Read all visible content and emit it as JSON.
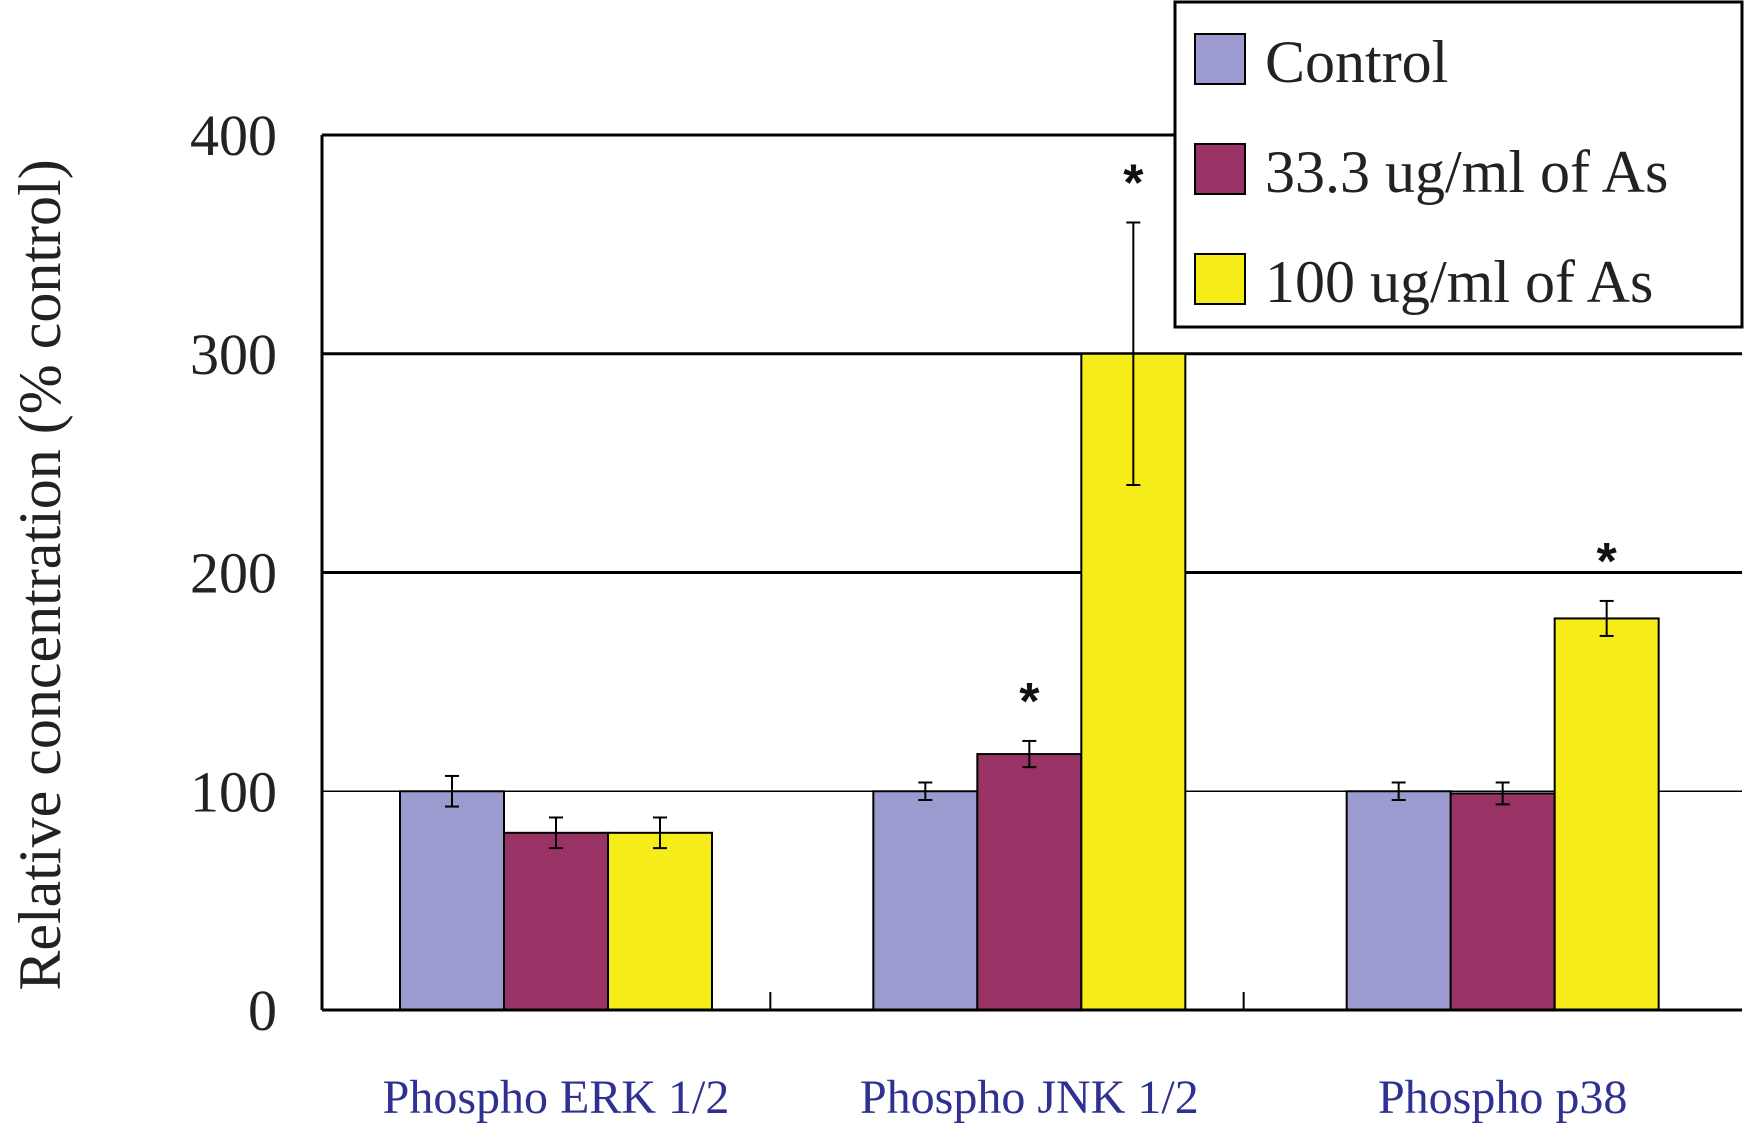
{
  "chart_data": {
    "type": "bar",
    "title": "",
    "xlabel": "",
    "ylabel": "Relative concentration (% control)",
    "ylim": [
      0,
      400
    ],
    "yticks": [
      0,
      100,
      200,
      300,
      400
    ],
    "grid": true,
    "legend_position": "top-right",
    "categories": [
      "Phospho ERK 1/2",
      "Phospho JNK 1/2",
      "Phospho p38"
    ],
    "series": [
      {
        "name": "Control",
        "color": "#9b9bd0",
        "values": [
          100,
          100,
          100
        ],
        "errors": [
          7,
          4,
          4
        ]
      },
      {
        "name": "33.3 ug/ml of As",
        "color": "#993366",
        "values": [
          81,
          117,
          99
        ],
        "errors": [
          7,
          6,
          5
        ]
      },
      {
        "name": "100 ug/ml of As",
        "color": "#f5ec1a",
        "values": [
          81,
          300,
          179
        ],
        "errors": [
          7,
          60,
          8
        ]
      }
    ],
    "annotations": [
      {
        "text": "*",
        "category": 1,
        "series": 1
      },
      {
        "text": "*",
        "category": 1,
        "series": 2
      },
      {
        "text": "*",
        "category": 2,
        "series": 2
      }
    ]
  }
}
